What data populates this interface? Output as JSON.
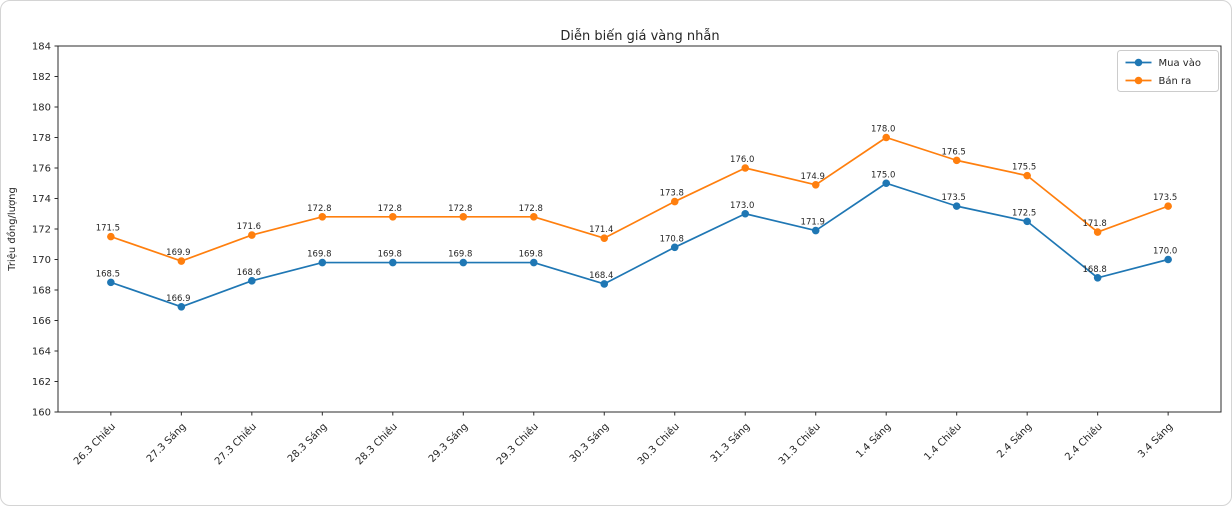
{
  "chart_data": {
    "type": "line",
    "title": "Diễn biến giá vàng nhẫn",
    "xlabel": "",
    "ylabel": "Triệu đồng/lượng",
    "categories": [
      "26.3 Chiều",
      "27.3 Sáng",
      "27.3 Chiều",
      "28.3 Sáng",
      "28.3 Chiều",
      "29.3 Sáng",
      "29.3 Chiều",
      "30.3 Sáng",
      "30.3 Chiều",
      "31.3 Sáng",
      "31.3 Chiều",
      "1.4 Sáng",
      "1.4 Chiều",
      "2.4 Sáng",
      "2.4 Chiều",
      "3.4 Sáng"
    ],
    "series": [
      {
        "name": "Mua vào",
        "color": "#1f77b4",
        "values": [
          168.5,
          166.9,
          168.6,
          169.8,
          169.8,
          169.8,
          169.8,
          168.4,
          170.8,
          173.0,
          171.9,
          175.0,
          173.5,
          172.5,
          168.8,
          170.0
        ]
      },
      {
        "name": "Bán ra",
        "color": "#ff7f0e",
        "values": [
          171.5,
          169.9,
          171.6,
          172.8,
          172.8,
          172.8,
          172.8,
          171.4,
          173.8,
          176.0,
          174.9,
          178.0,
          176.5,
          175.5,
          171.8,
          173.5
        ]
      }
    ],
    "ylim": [
      160,
      184
    ],
    "ytick_step": 2,
    "grid": false,
    "legend_position": "upper right",
    "marker": "circle",
    "data_labels": true,
    "label_decimals": 1,
    "x_tick_rotation": 45
  },
  "colors": {
    "text": "#262626",
    "spine": "#2b2b2b",
    "legend_border": "#cccccc",
    "legend_background": "#ffffff",
    "card_border": "#d4d4d4",
    "background": "#ffffff"
  }
}
